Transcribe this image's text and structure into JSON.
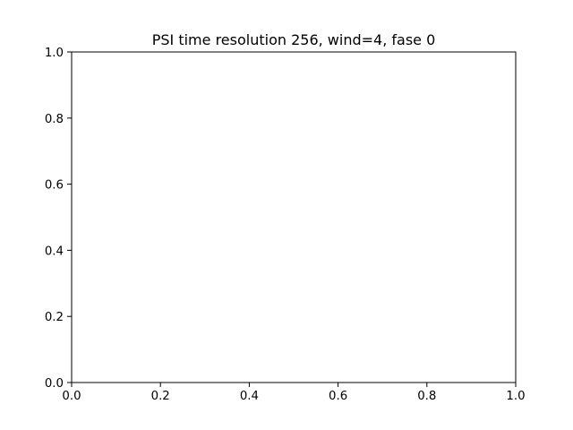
{
  "chart_data": {
    "type": "line",
    "title": "PSI time resolution 256, wind=4, fase 0",
    "xlabel": "",
    "ylabel": "",
    "xlim": [
      0.0,
      1.0
    ],
    "ylim": [
      0.0,
      1.0
    ],
    "xticks": [
      0.0,
      0.2,
      0.4,
      0.6,
      0.8,
      1.0
    ],
    "yticks": [
      0.0,
      0.2,
      0.4,
      0.6,
      0.8,
      1.0
    ],
    "xtick_labels": [
      "0.0",
      "0.2",
      "0.4",
      "0.6",
      "0.8",
      "1.0"
    ],
    "ytick_labels": [
      "0.0",
      "0.2",
      "0.4",
      "0.6",
      "0.8",
      "1.0"
    ],
    "series": [],
    "grid": false,
    "colors": {
      "axes": "#000000",
      "background": "#ffffff"
    }
  }
}
